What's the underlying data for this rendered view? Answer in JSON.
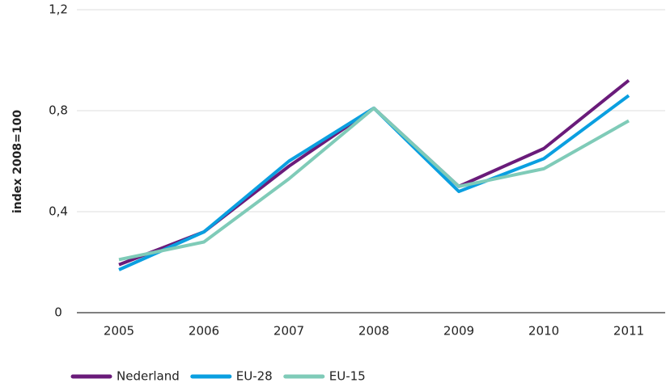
{
  "chart_data": {
    "type": "line",
    "y_label": "index 2008=100",
    "categories": [
      "2005",
      "2006",
      "2007",
      "2008",
      "2009",
      "2010",
      "2011"
    ],
    "series": [
      {
        "name": "Nederland",
        "color": "#6a1b7a",
        "values": [
          0.19,
          0.32,
          0.58,
          0.81,
          0.5,
          0.65,
          0.92
        ]
      },
      {
        "name": "EU-28",
        "color": "#0a9fe0",
        "values": [
          0.17,
          0.32,
          0.6,
          0.81,
          0.48,
          0.61,
          0.86
        ]
      },
      {
        "name": "EU-15",
        "color": "#7fcbb8",
        "values": [
          0.21,
          0.28,
          0.53,
          0.81,
          0.5,
          0.57,
          0.76
        ]
      }
    ],
    "ylim": [
      0,
      1.2
    ],
    "yticks": [
      0,
      {
        "value": 0.4,
        "label": "0,4"
      },
      {
        "value": 0.8,
        "label": "0,8"
      },
      {
        "value": 1.2,
        "label": "1,2"
      }
    ],
    "grid": true
  }
}
